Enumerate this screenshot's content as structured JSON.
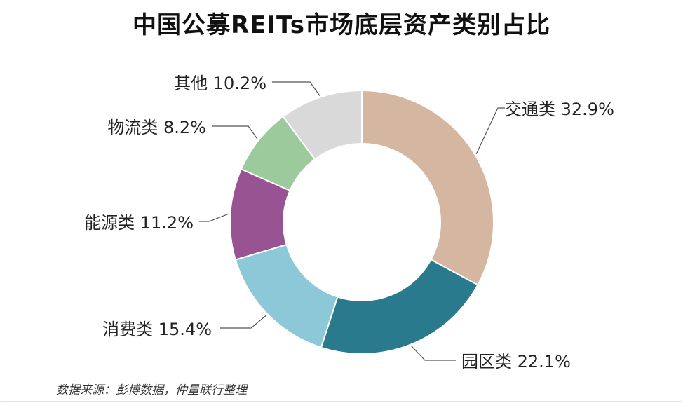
{
  "chart_data": {
    "type": "pie",
    "title": "中国公募REITs市场底层资产类别占比",
    "source": "数据来源：彭博数据，仲量联行整理",
    "slices": [
      {
        "label": "交通类",
        "value": 32.9,
        "value_label": "32.9%",
        "color": "#d5b6a0"
      },
      {
        "label": "园区类",
        "value": 22.1,
        "value_label": "22.1%",
        "color": "#2a7a8e"
      },
      {
        "label": "消费类",
        "value": 15.4,
        "value_label": "15.4%",
        "color": "#8cc8d8"
      },
      {
        "label": "能源类",
        "value": 11.2,
        "value_label": "11.2%",
        "color": "#975392"
      },
      {
        "label": "物流类",
        "value": 8.2,
        "value_label": "8.2%",
        "color": "#9dca9d"
      },
      {
        "label": "其他",
        "value": 10.2,
        "value_label": "10.2%",
        "color": "#d9d9d9"
      }
    ],
    "donut": true,
    "start_angle": "12 o'clock",
    "direction": "clockwise"
  }
}
